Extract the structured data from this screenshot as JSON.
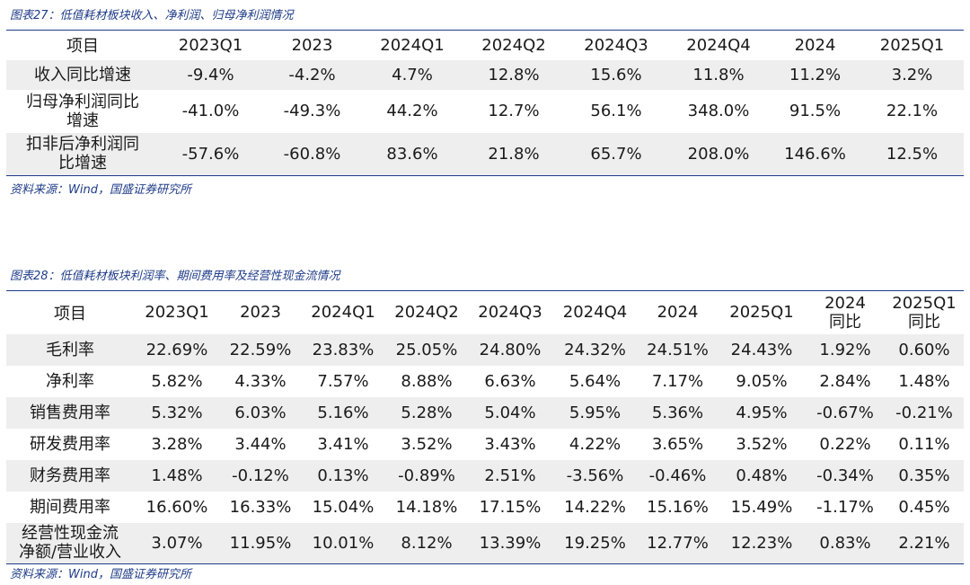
{
  "table27": {
    "caption": "图表27：低值耗材板块收入、净利润、归母净利润情况",
    "headers": [
      "项目",
      "2023Q1",
      "2023",
      "2024Q1",
      "2024Q2",
      "2024Q3",
      "2024Q4",
      "2024",
      "2025Q1"
    ],
    "rows": [
      {
        "label": "收入同比增速",
        "values": [
          "-9.4%",
          "-4.2%",
          "4.7%",
          "12.8%",
          "15.6%",
          "11.8%",
          "11.2%",
          "3.2%"
        ]
      },
      {
        "label": "归母净利润同比增速",
        "values": [
          "-41.0%",
          "-49.3%",
          "44.2%",
          "12.7%",
          "56.1%",
          "348.0%",
          "91.5%",
          "22.1%"
        ]
      },
      {
        "label": "扣非后净利润同比增速",
        "values": [
          "-57.6%",
          "-60.8%",
          "83.6%",
          "21.8%",
          "65.7%",
          "208.0%",
          "146.6%",
          "12.5%"
        ]
      }
    ],
    "source": "资料来源：Wind，国盛证券研究所"
  },
  "table28": {
    "caption": "图表28：低值耗材板块利润率、期间费用率及经营性现金流情况",
    "headers": [
      "项目",
      "2023Q1",
      "2023",
      "2024Q1",
      "2024Q2",
      "2024Q3",
      "2024Q4",
      "2024",
      "2025Q1",
      "2024同比",
      "2025Q1同比"
    ],
    "headers_line1": [
      "项目",
      "2023Q1",
      "2023",
      "2024Q1",
      "2024Q2",
      "2024Q3",
      "2024Q4",
      "2024",
      "2025Q1",
      "2024",
      "2025Q1"
    ],
    "headers_line2": [
      "",
      "",
      "",
      "",
      "",
      "",
      "",
      "",
      "",
      "同比",
      "同比"
    ],
    "rows": [
      {
        "label": "毛利率",
        "values": [
          "22.69%",
          "22.59%",
          "23.83%",
          "25.05%",
          "24.80%",
          "24.32%",
          "24.51%",
          "24.43%",
          "1.92%",
          "0.60%"
        ]
      },
      {
        "label": "净利率",
        "values": [
          "5.82%",
          "4.33%",
          "7.57%",
          "8.88%",
          "6.63%",
          "5.64%",
          "7.17%",
          "9.05%",
          "2.84%",
          "1.48%"
        ]
      },
      {
        "label": "销售费用率",
        "values": [
          "5.32%",
          "6.03%",
          "5.16%",
          "5.28%",
          "5.04%",
          "5.95%",
          "5.36%",
          "4.95%",
          "-0.67%",
          "-0.21%"
        ]
      },
      {
        "label": "研发费用率",
        "values": [
          "3.28%",
          "3.44%",
          "3.41%",
          "3.52%",
          "3.43%",
          "4.22%",
          "3.65%",
          "3.52%",
          "0.22%",
          "0.11%"
        ]
      },
      {
        "label": "财务费用率",
        "values": [
          "1.48%",
          "-0.12%",
          "0.13%",
          "-0.89%",
          "2.51%",
          "-3.56%",
          "-0.46%",
          "0.48%",
          "-0.34%",
          "0.35%"
        ]
      },
      {
        "label": "期间费用率",
        "values": [
          "16.60%",
          "16.33%",
          "15.04%",
          "14.18%",
          "17.15%",
          "14.22%",
          "15.16%",
          "15.49%",
          "-1.17%",
          "0.45%"
        ]
      },
      {
        "label": "经营性现金流净额/营业收入",
        "label_line1": "经营性现金流",
        "label_line2": "净额/营业收入",
        "values": [
          "3.07%",
          "11.95%",
          "10.01%",
          "8.12%",
          "13.39%",
          "19.25%",
          "12.77%",
          "12.23%",
          "0.83%",
          "2.21%"
        ]
      }
    ],
    "source": "资料来源：Wind，国盛证券研究所"
  }
}
